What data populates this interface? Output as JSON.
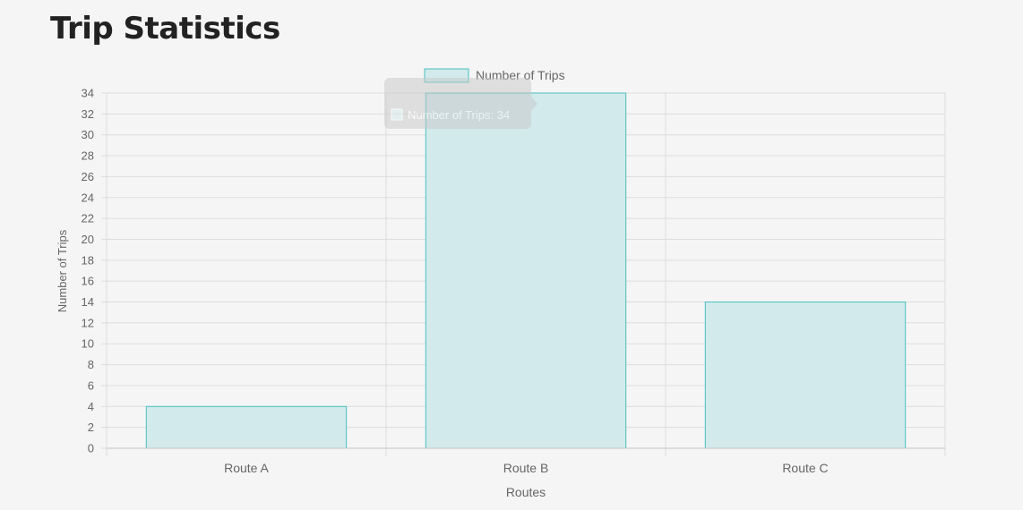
{
  "page": {
    "title": "Trip Statistics"
  },
  "chart_data": {
    "type": "bar",
    "categories": [
      "Route A",
      "Route B",
      "Route C"
    ],
    "series": [
      {
        "name": "Number of Trips",
        "values": [
          4,
          34,
          14
        ]
      }
    ],
    "xlabel": "Routes",
    "ylabel": "Number of Trips",
    "ylim": [
      0,
      34
    ],
    "yticks": [
      0,
      2,
      4,
      6,
      8,
      10,
      12,
      14,
      16,
      18,
      20,
      22,
      24,
      26,
      28,
      30,
      32,
      34
    ],
    "grid": true,
    "legend_position": "top-center",
    "colors": {
      "bar_fill": "#d2eaeb",
      "bar_border": "#4bc0c0",
      "grid": "#dddddd",
      "axis_text": "#666666"
    }
  },
  "tooltip": {
    "text": "Number of Trips: 34"
  }
}
